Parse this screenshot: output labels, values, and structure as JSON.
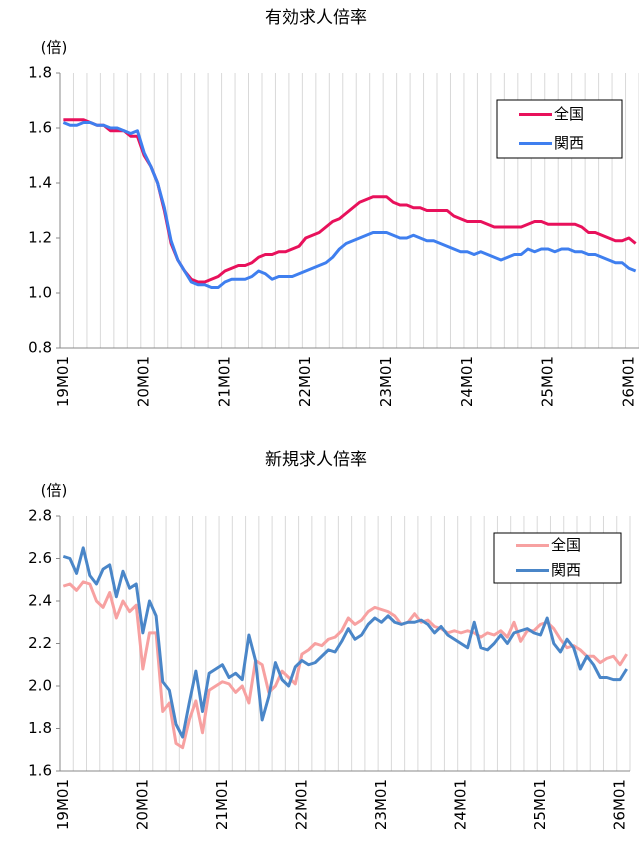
{
  "chart_data": [
    {
      "type": "line",
      "title": "有効求人倍率",
      "y_label": "(倍)",
      "categories": [
        "19M01",
        null,
        null,
        null,
        null,
        null,
        null,
        null,
        null,
        null,
        null,
        null,
        "20M01",
        null,
        null,
        null,
        null,
        null,
        null,
        null,
        null,
        null,
        null,
        null,
        "21M01",
        null,
        null,
        null,
        null,
        null,
        null,
        null,
        null,
        null,
        null,
        null,
        "22M01",
        null,
        null,
        null,
        null,
        null,
        null,
        null,
        null,
        null,
        null,
        null,
        "23M01",
        null,
        null,
        null,
        null,
        null,
        null,
        null,
        null,
        null,
        null,
        null,
        "24M01",
        null,
        null,
        null,
        null,
        null,
        null,
        null,
        null,
        null,
        null,
        null,
        "25M01",
        null,
        null,
        null,
        null,
        null,
        null,
        null,
        null,
        null,
        null,
        null,
        "26M01",
        null
      ],
      "series": [
        {
          "name": "全国",
          "color": "#e8115b",
          "values": [
            1.63,
            1.63,
            1.63,
            1.63,
            1.62,
            1.61,
            1.61,
            1.59,
            1.59,
            1.59,
            1.57,
            1.57,
            1.5,
            1.46,
            1.4,
            1.3,
            1.18,
            1.12,
            1.08,
            1.05,
            1.04,
            1.04,
            1.05,
            1.06,
            1.08,
            1.09,
            1.1,
            1.1,
            1.11,
            1.13,
            1.14,
            1.14,
            1.15,
            1.15,
            1.16,
            1.17,
            1.2,
            1.21,
            1.22,
            1.24,
            1.26,
            1.27,
            1.29,
            1.31,
            1.33,
            1.34,
            1.35,
            1.35,
            1.35,
            1.33,
            1.32,
            1.32,
            1.31,
            1.31,
            1.3,
            1.3,
            1.3,
            1.3,
            1.28,
            1.27,
            1.26,
            1.26,
            1.26,
            1.25,
            1.24,
            1.24,
            1.24,
            1.24,
            1.24,
            1.25,
            1.26,
            1.26,
            1.25,
            1.25,
            1.25,
            1.25,
            1.25,
            1.24,
            1.22,
            1.22,
            1.21,
            1.2,
            1.19,
            1.19,
            1.2,
            1.18
          ]
        },
        {
          "name": "関西",
          "color": "#3f7fef",
          "values": [
            1.62,
            1.61,
            1.61,
            1.62,
            1.62,
            1.61,
            1.61,
            1.6,
            1.6,
            1.59,
            1.58,
            1.59,
            1.51,
            1.46,
            1.4,
            1.31,
            1.19,
            1.12,
            1.08,
            1.04,
            1.03,
            1.03,
            1.02,
            1.02,
            1.04,
            1.05,
            1.05,
            1.05,
            1.06,
            1.08,
            1.07,
            1.05,
            1.06,
            1.06,
            1.06,
            1.07,
            1.08,
            1.09,
            1.1,
            1.11,
            1.13,
            1.16,
            1.18,
            1.19,
            1.2,
            1.21,
            1.22,
            1.22,
            1.22,
            1.21,
            1.2,
            1.2,
            1.21,
            1.2,
            1.19,
            1.19,
            1.18,
            1.17,
            1.16,
            1.15,
            1.15,
            1.14,
            1.15,
            1.14,
            1.13,
            1.12,
            1.13,
            1.14,
            1.14,
            1.16,
            1.15,
            1.16,
            1.16,
            1.15,
            1.16,
            1.16,
            1.15,
            1.15,
            1.14,
            1.14,
            1.13,
            1.12,
            1.11,
            1.11,
            1.09,
            1.08
          ]
        }
      ],
      "ylim": [
        0.8,
        1.8
      ],
      "yticks": [
        0.8,
        {
          "value": 1,
          "label": "1.0"
        },
        1.2,
        1.4,
        1.6,
        1.8
      ]
    },
    {
      "type": "line",
      "title": "新規求人倍率",
      "y_label": "(倍)",
      "categories": [
        "19M01",
        null,
        null,
        null,
        null,
        null,
        null,
        null,
        null,
        null,
        null,
        null,
        "20M01",
        null,
        null,
        null,
        null,
        null,
        null,
        null,
        null,
        null,
        null,
        null,
        "21M01",
        null,
        null,
        null,
        null,
        null,
        null,
        null,
        null,
        null,
        null,
        null,
        "22M01",
        null,
        null,
        null,
        null,
        null,
        null,
        null,
        null,
        null,
        null,
        null,
        "23M01",
        null,
        null,
        null,
        null,
        null,
        null,
        null,
        null,
        null,
        null,
        null,
        "24M01",
        null,
        null,
        null,
        null,
        null,
        null,
        null,
        null,
        null,
        null,
        null,
        "25M01",
        null,
        null,
        null,
        null,
        null,
        null,
        null,
        null,
        null,
        null,
        null,
        "26M01",
        null
      ],
      "series": [
        {
          "name": "全国",
          "color": "#f7a1a1",
          "values": [
            2.47,
            2.48,
            2.45,
            2.49,
            2.48,
            2.4,
            2.37,
            2.44,
            2.32,
            2.4,
            2.35,
            2.38,
            2.08,
            2.25,
            2.25,
            1.88,
            1.92,
            1.73,
            1.71,
            1.84,
            1.93,
            1.78,
            1.98,
            2.0,
            2.02,
            2.01,
            1.97,
            2.0,
            1.92,
            2.12,
            2.1,
            1.97,
            2.0,
            2.07,
            2.04,
            2.01,
            2.15,
            2.17,
            2.2,
            2.19,
            2.22,
            2.23,
            2.26,
            2.32,
            2.29,
            2.31,
            2.35,
            2.37,
            2.36,
            2.35,
            2.33,
            2.29,
            2.3,
            2.34,
            2.3,
            2.31,
            2.28,
            2.27,
            2.25,
            2.26,
            2.25,
            2.26,
            2.25,
            2.23,
            2.25,
            2.24,
            2.26,
            2.23,
            2.3,
            2.21,
            2.26,
            2.26,
            2.29,
            2.3,
            2.27,
            2.22,
            2.18,
            2.19,
            2.17,
            2.14,
            2.14,
            2.11,
            2.13,
            2.14,
            2.1,
            2.15
          ]
        },
        {
          "name": "関西",
          "color": "#4a86c8",
          "values": [
            2.61,
            2.6,
            2.53,
            2.65,
            2.52,
            2.48,
            2.55,
            2.57,
            2.42,
            2.54,
            2.46,
            2.48,
            2.25,
            2.4,
            2.33,
            2.02,
            1.98,
            1.82,
            1.76,
            1.92,
            2.07,
            1.88,
            2.06,
            2.08,
            2.1,
            2.04,
            2.06,
            2.03,
            2.24,
            2.12,
            1.84,
            1.95,
            2.11,
            2.03,
            2.0,
            2.09,
            2.12,
            2.1,
            2.11,
            2.14,
            2.17,
            2.16,
            2.21,
            2.27,
            2.22,
            2.24,
            2.29,
            2.32,
            2.3,
            2.33,
            2.3,
            2.29,
            2.3,
            2.3,
            2.31,
            2.29,
            2.25,
            2.28,
            2.24,
            2.22,
            2.2,
            2.18,
            2.3,
            2.18,
            2.17,
            2.2,
            2.24,
            2.2,
            2.25,
            2.26,
            2.27,
            2.25,
            2.24,
            2.32,
            2.2,
            2.16,
            2.22,
            2.18,
            2.08,
            2.14,
            2.1,
            2.04,
            2.04,
            2.03,
            2.03,
            2.08
          ]
        }
      ],
      "ylim": [
        1.6,
        2.8
      ],
      "yticks": [
        1.6,
        1.8,
        {
          "value": 2,
          "label": "2.0"
        },
        2.2,
        2.4,
        2.6,
        2.8
      ]
    }
  ]
}
